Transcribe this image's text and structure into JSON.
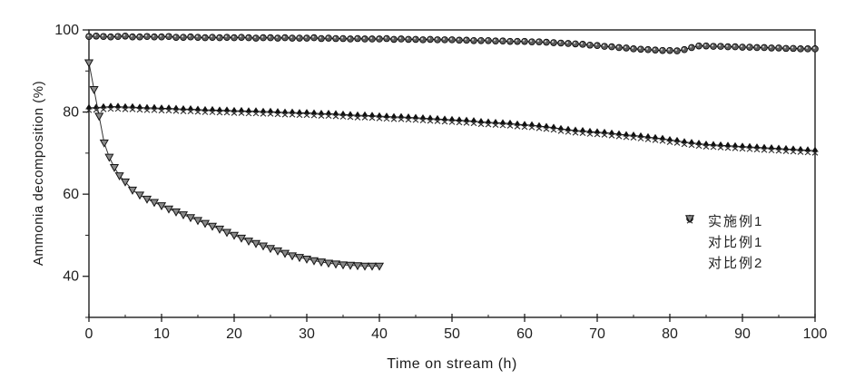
{
  "figure": {
    "background": "#ffffff",
    "ink_color": "#1f1f1f"
  },
  "chart_data": {
    "type": "line",
    "title": "",
    "xlabel": "Time on stream (h)",
    "ylabel": "Ammonia decomposition (%)",
    "xlim": [
      0,
      100
    ],
    "ylim": [
      30,
      100
    ],
    "x_major_ticks": [
      0,
      10,
      20,
      30,
      40,
      50,
      60,
      70,
      80,
      90,
      100
    ],
    "x_minor_step": 5,
    "y_major_ticks": [
      40,
      60,
      80,
      100
    ],
    "y_minor_ticks": [
      30,
      50,
      70,
      90
    ],
    "grid": false,
    "legend_position": "right-middle",
    "series": [
      {
        "name": "实施例1",
        "marker": "shaded-circle",
        "color": "#2b2b2b",
        "x_start": 0,
        "x_step": 1,
        "y": [
          98.4,
          98.5,
          98.4,
          98.3,
          98.4,
          98.5,
          98.3,
          98.3,
          98.4,
          98.3,
          98.3,
          98.4,
          98.2,
          98.2,
          98.3,
          98.2,
          98.1,
          98.2,
          98.1,
          98.2,
          98.1,
          98.2,
          98.1,
          98.0,
          98.1,
          98.1,
          98.0,
          98.1,
          98.0,
          98.0,
          98.0,
          98.1,
          97.9,
          98.0,
          97.9,
          97.9,
          97.8,
          97.9,
          97.8,
          97.8,
          97.8,
          97.9,
          97.7,
          97.8,
          97.7,
          97.7,
          97.6,
          97.7,
          97.6,
          97.6,
          97.6,
          97.5,
          97.5,
          97.4,
          97.4,
          97.4,
          97.3,
          97.3,
          97.2,
          97.2,
          97.2,
          97.1,
          97.1,
          97.0,
          96.9,
          96.8,
          96.7,
          96.6,
          96.5,
          96.3,
          96.2,
          96.0,
          95.9,
          95.7,
          95.6,
          95.4,
          95.3,
          95.2,
          95.1,
          95.0,
          95.0,
          94.9,
          95.2,
          95.7,
          96.1,
          96.1,
          96.0,
          96.0,
          95.9,
          95.9,
          95.8,
          95.8,
          95.7,
          95.7,
          95.6,
          95.6,
          95.5,
          95.5,
          95.4,
          95.4,
          95.4
        ]
      },
      {
        "name": "对比例1",
        "marker": "filled-triangle-x",
        "color": "#111111",
        "x_start": 0,
        "x_step": 1,
        "y": [
          81.0,
          81.1,
          81.2,
          81.3,
          81.3,
          81.2,
          81.2,
          81.1,
          81.0,
          81.0,
          80.9,
          80.9,
          80.8,
          80.7,
          80.7,
          80.6,
          80.5,
          80.5,
          80.4,
          80.4,
          80.3,
          80.3,
          80.2,
          80.2,
          80.1,
          80.1,
          80.0,
          79.9,
          79.9,
          79.8,
          79.8,
          79.7,
          79.6,
          79.6,
          79.5,
          79.4,
          79.3,
          79.2,
          79.2,
          79.1,
          79.0,
          78.9,
          78.8,
          78.8,
          78.7,
          78.6,
          78.5,
          78.4,
          78.3,
          78.2,
          78.1,
          78.0,
          77.9,
          77.8,
          77.6,
          77.5,
          77.4,
          77.3,
          77.2,
          77.0,
          76.9,
          76.8,
          76.6,
          76.4,
          76.2,
          75.9,
          75.7,
          75.5,
          75.4,
          75.2,
          75.1,
          75.0,
          74.8,
          74.6,
          74.4,
          74.3,
          74.1,
          73.9,
          73.7,
          73.5,
          73.2,
          73.0,
          72.7,
          72.5,
          72.3,
          72.1,
          72.0,
          71.9,
          71.8,
          71.7,
          71.6,
          71.5,
          71.4,
          71.3,
          71.2,
          71.1,
          71.0,
          70.9,
          70.8,
          70.7,
          70.6
        ]
      },
      {
        "name": "对比例2",
        "marker": "open-down-triangle",
        "color": "#333333",
        "x": [
          0,
          0.7,
          1.4,
          2.1,
          2.8,
          3.5,
          4.2,
          5,
          6,
          7,
          8,
          9,
          10,
          11,
          12,
          13,
          14,
          15,
          16,
          17,
          18,
          19,
          20,
          21,
          22,
          23,
          24,
          25,
          26,
          27,
          28,
          29,
          30,
          31,
          32,
          33,
          34,
          35,
          36,
          37,
          38,
          39,
          40
        ],
        "y": [
          92.0,
          85.5,
          79.0,
          72.5,
          69.0,
          66.5,
          64.5,
          63.0,
          61.0,
          59.8,
          58.8,
          58.0,
          57.2,
          56.4,
          55.7,
          55.0,
          54.3,
          53.6,
          52.9,
          52.2,
          51.5,
          50.7,
          50.0,
          49.3,
          48.6,
          48.0,
          47.4,
          46.8,
          46.2,
          45.6,
          45.0,
          44.6,
          44.2,
          43.8,
          43.5,
          43.2,
          43.0,
          42.8,
          42.7,
          42.6,
          42.5,
          42.5,
          42.5
        ]
      }
    ]
  }
}
